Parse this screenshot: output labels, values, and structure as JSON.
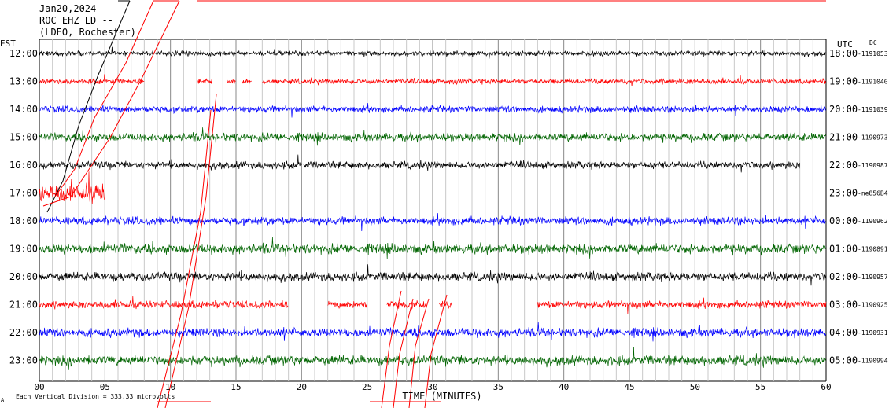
{
  "header": {
    "date": "Jan20,2024",
    "station": "ROC EHZ LD --",
    "network": "(LDEO, Rochester)"
  },
  "labels": {
    "left_timezone": "EST",
    "right_timezone": "UTC",
    "right_column_code": "DC",
    "xlabel": "TIME (MINUTES)",
    "footer_note": "Each Vertical Division = 333.33 microvolts",
    "footer_mark": "A"
  },
  "chart_data": {
    "type": "line",
    "title": "ROC EHZ LD --",
    "xlabel": "TIME (MINUTES)",
    "ylabel": "",
    "xlim": [
      0,
      60
    ],
    "x_ticks": [
      "00",
      "05",
      "10",
      "15",
      "20",
      "25",
      "30",
      "35",
      "40",
      "45",
      "50",
      "55",
      "60"
    ],
    "grid": "vertical every minute 0-60",
    "trace_colors": [
      "#000000",
      "#ff0000",
      "#0000ff",
      "#006400"
    ],
    "rows": [
      {
        "est": "12:00",
        "utc": "18:00",
        "dc": "-1191053",
        "color": "#000000",
        "amp": 0.26,
        "segments": [
          [
            0,
            60
          ]
        ]
      },
      {
        "est": "13:00",
        "utc": "19:00",
        "dc": "-1191040",
        "color": "#ff0000",
        "amp": 0.26,
        "segments": [
          [
            0,
            8
          ],
          [
            12.1,
            13.2
          ],
          [
            14.3,
            15
          ],
          [
            15.5,
            16.2
          ],
          [
            17,
            60
          ]
        ]
      },
      {
        "est": "14:00",
        "utc": "20:00",
        "dc": "-1191039",
        "color": "#0000ff",
        "amp": 0.34,
        "segments": [
          [
            0,
            60
          ]
        ]
      },
      {
        "est": "15:00",
        "utc": "21:00",
        "dc": "-1190973",
        "color": "#006400",
        "amp": 0.42,
        "segments": [
          [
            0,
            60
          ]
        ]
      },
      {
        "est": "16:00",
        "utc": "22:00",
        "dc": "-1190987",
        "color": "#000000",
        "amp": 0.38,
        "segments": [
          [
            0,
            58
          ]
        ]
      },
      {
        "est": "17:00",
        "utc": "23:00",
        "dc": "-ne856B4",
        "color": "#ff0000",
        "amp": 0.95,
        "segments": [
          [
            0,
            5
          ]
        ]
      },
      {
        "est": "18:00",
        "utc": "00:00",
        "dc": "-1190962",
        "color": "#0000ff",
        "amp": 0.42,
        "segments": [
          [
            0,
            60
          ]
        ]
      },
      {
        "est": "19:00",
        "utc": "01:00",
        "dc": "-1190891",
        "color": "#006400",
        "amp": 0.5,
        "segments": [
          [
            0,
            60
          ]
        ]
      },
      {
        "est": "20:00",
        "utc": "02:00",
        "dc": "-1190957",
        "color": "#000000",
        "amp": 0.45,
        "segments": [
          [
            0,
            60
          ]
        ]
      },
      {
        "est": "21:00",
        "utc": "03:00",
        "dc": "-1190925",
        "color": "#ff0000",
        "amp": 0.38,
        "segments": [
          [
            0,
            19
          ],
          [
            22,
            25
          ],
          [
            26.5,
            29.5
          ],
          [
            30.5,
            31.5
          ],
          [
            38,
            60
          ]
        ]
      },
      {
        "est": "22:00",
        "utc": "04:00",
        "dc": "-1190931",
        "color": "#0000ff",
        "amp": 0.45,
        "segments": [
          [
            0,
            60
          ]
        ]
      },
      {
        "est": "23:00",
        "utc": "05:00",
        "dc": "-1190994",
        "color": "#006400",
        "amp": 0.5,
        "segments": [
          [
            0,
            60
          ]
        ]
      }
    ]
  }
}
